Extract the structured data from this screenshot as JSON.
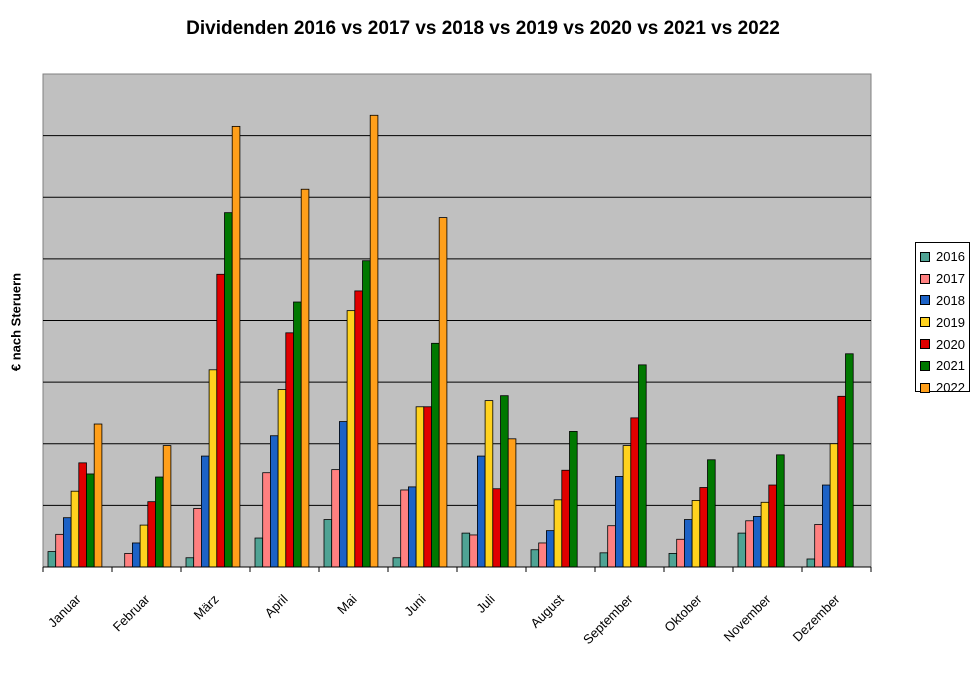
{
  "chart_data": {
    "type": "bar",
    "title": "Dividenden 2016 vs 2017 vs 2018 vs 2019 vs 2020 vs 2021 vs 2022",
    "xlabel": "",
    "ylabel": "€ nach Steruern",
    "ylim": [
      0,
      8
    ],
    "grid": true,
    "legend_position": "right",
    "categories": [
      "Januar",
      "Februar",
      "März",
      "April",
      "Mai",
      "Juni",
      "Juli",
      "August",
      "September",
      "Oktober",
      "November",
      "Dezember"
    ],
    "series": [
      {
        "name": "2016",
        "color": "#4fa394",
        "values": [
          0.25,
          0,
          0.15,
          0.47,
          0.77,
          0.15,
          0.55,
          0.28,
          0.23,
          0.22,
          0.55,
          0.13
        ]
      },
      {
        "name": "2017",
        "color": "#ff8080",
        "values": [
          0.53,
          0.22,
          0.95,
          1.53,
          1.58,
          1.25,
          0.52,
          0.39,
          0.67,
          0.45,
          0.75,
          0.69
        ]
      },
      {
        "name": "2018",
        "color": "#1c62c6",
        "values": [
          0.8,
          0.39,
          1.8,
          2.13,
          2.36,
          1.3,
          1.8,
          0.59,
          1.47,
          0.77,
          0.82,
          1.33
        ]
      },
      {
        "name": "2019",
        "color": "#ffd21e",
        "values": [
          1.23,
          0.68,
          3.2,
          2.88,
          4.16,
          2.6,
          2.7,
          1.09,
          1.97,
          1.08,
          1.05,
          2.0
        ]
      },
      {
        "name": "2020",
        "color": "#e00000",
        "values": [
          1.69,
          1.06,
          4.75,
          3.8,
          4.48,
          2.6,
          1.27,
          1.57,
          2.42,
          1.29,
          1.33,
          2.77
        ]
      },
      {
        "name": "2021",
        "color": "#007800",
        "values": [
          1.51,
          1.46,
          5.75,
          4.3,
          4.97,
          3.63,
          2.78,
          2.2,
          3.28,
          1.74,
          1.82,
          3.46
        ]
      },
      {
        "name": "2022",
        "color": "#ff9f1a",
        "values": [
          2.32,
          1.97,
          7.15,
          6.13,
          7.33,
          5.67,
          2.08,
          0,
          0,
          0,
          0,
          0
        ]
      }
    ]
  }
}
